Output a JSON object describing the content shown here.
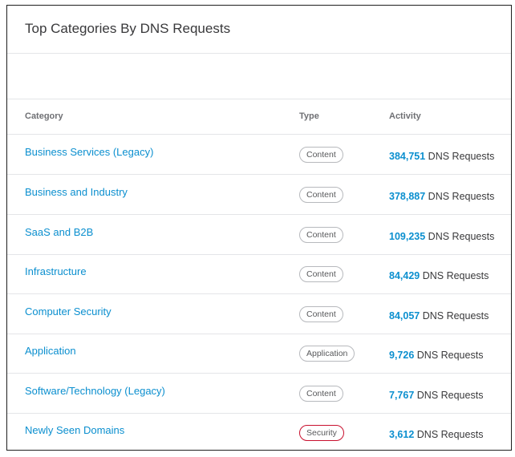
{
  "widget": {
    "title": "Top Categories By DNS Requests"
  },
  "table": {
    "columns": {
      "category": "Category",
      "type": "Type",
      "activity": "Activity"
    },
    "rows": [
      {
        "category": "Business Services (Legacy)",
        "type": "Content",
        "count": "384,751",
        "unit": "DNS Requests"
      },
      {
        "category": "Business and Industry",
        "type": "Content",
        "count": "378,887",
        "unit": "DNS Requests"
      },
      {
        "category": "SaaS and B2B",
        "type": "Content",
        "count": "109,235",
        "unit": "DNS Requests"
      },
      {
        "category": "Infrastructure",
        "type": "Content",
        "count": "84,429",
        "unit": "DNS Requests"
      },
      {
        "category": "Computer Security",
        "type": "Content",
        "count": "84,057",
        "unit": "DNS Requests"
      },
      {
        "category": "Application",
        "type": "Application",
        "count": "9,726",
        "unit": "DNS Requests"
      },
      {
        "category": "Software/Technology (Legacy)",
        "type": "Content",
        "count": "7,767",
        "unit": "DNS Requests"
      },
      {
        "category": "Newly Seen Domains",
        "type": "Security",
        "count": "3,612",
        "unit": "DNS Requests"
      }
    ]
  },
  "colors": {
    "link": "#0b8fcf",
    "security_badge_border": "#c8102e",
    "badge_border": "#b7b9bd"
  }
}
